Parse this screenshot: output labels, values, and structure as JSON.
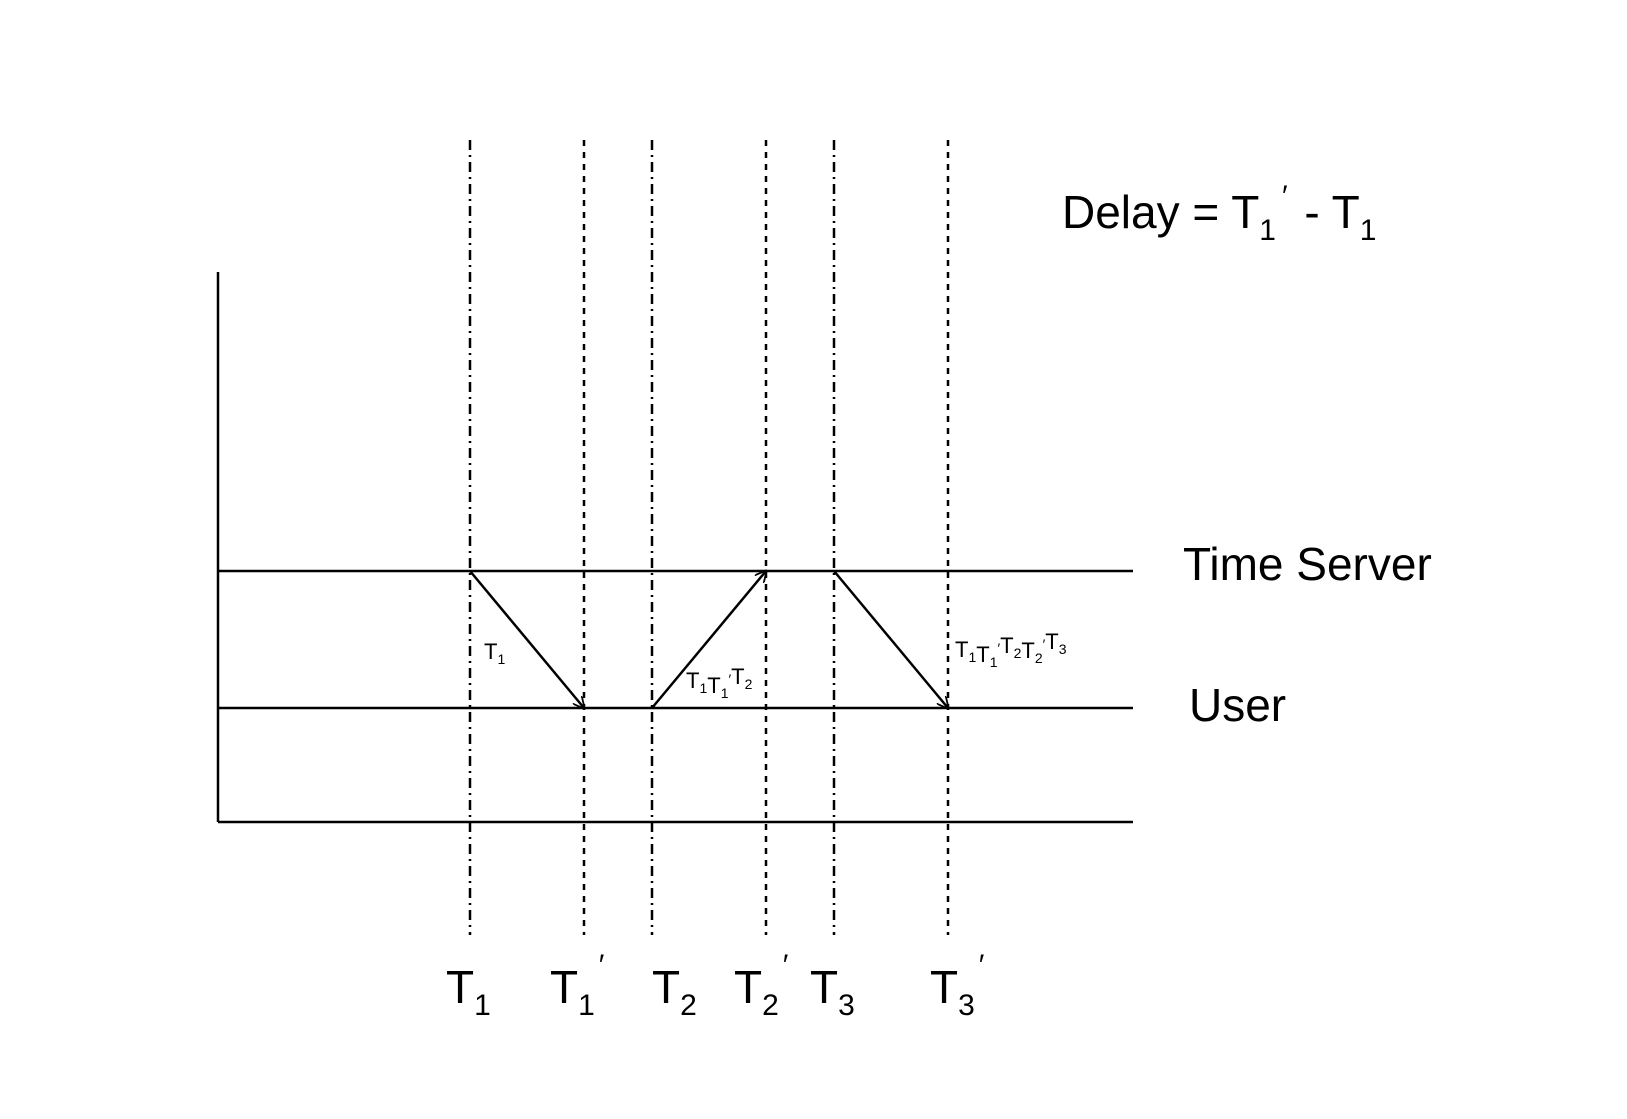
{
  "formula": {
    "prefix": "Delay = T",
    "sub1": "1",
    "prime": "′",
    "mid": " - T",
    "sub2": "1"
  },
  "lanes": {
    "server_label": "Time Server",
    "user_label": "User"
  },
  "time_labels": [
    {
      "base": "T",
      "sub": "1",
      "prime": ""
    },
    {
      "base": "T",
      "sub": "1",
      "prime": "′"
    },
    {
      "base": "T",
      "sub": "2",
      "prime": ""
    },
    {
      "base": "T",
      "sub": "2",
      "prime": "′"
    },
    {
      "base": "T",
      "sub": "3",
      "prime": ""
    },
    {
      "base": "T",
      "sub": "3",
      "prime": "′"
    }
  ],
  "messages": [
    {
      "direction": "server-to-user",
      "from_time_index": 0,
      "to_time_index": 1,
      "label": [
        {
          "t": "T",
          "sub": "1"
        }
      ]
    },
    {
      "direction": "user-to-server",
      "from_time_index": 2,
      "to_time_index": 3,
      "label": [
        {
          "t": "T",
          "sub": "1"
        },
        {
          "t": "T",
          "sub": "1",
          "prime": true
        },
        {
          "t": "T",
          "sub": "2"
        }
      ]
    },
    {
      "direction": "server-to-user",
      "from_time_index": 4,
      "to_time_index": 5,
      "label": [
        {
          "t": "T",
          "sub": "1"
        },
        {
          "t": "T",
          "sub": "1",
          "prime": true
        },
        {
          "t": "T",
          "sub": "2"
        },
        {
          "t": "T",
          "sub": "2",
          "prime": true
        },
        {
          "t": "T",
          "sub": "3"
        }
      ]
    }
  ],
  "colors": {
    "line": "#000000",
    "background": "#ffffff"
  }
}
